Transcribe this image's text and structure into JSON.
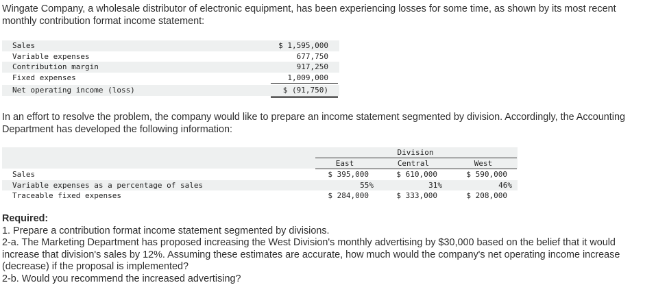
{
  "intro": "Wingate Company, a wholesale distributor of electronic equipment, has been experiencing losses for some time, as shown by its most recent monthly contribution format income statement:",
  "income_statement": {
    "rows": [
      {
        "label": "Sales",
        "value": "$ 1,595,000"
      },
      {
        "label": "Variable expenses",
        "value": "677,750"
      },
      {
        "label": "Contribution margin",
        "value": "917,250"
      },
      {
        "label": "Fixed expenses",
        "value": "1,009,000"
      },
      {
        "label": "Net operating income (loss)",
        "value": "$ (91,750)"
      }
    ]
  },
  "effort": "In an effort to resolve the problem, the company would like to prepare an income statement segmented by division. Accordingly, the Accounting Department has developed the following information:",
  "division_table": {
    "group_header": "Division",
    "columns": [
      "East",
      "Central",
      "West"
    ],
    "rows": [
      {
        "label": "Sales",
        "values": [
          "$ 395,000",
          "$ 610,000",
          "$ 590,000"
        ]
      },
      {
        "label": "Variable expenses as a percentage of sales",
        "values": [
          "55%",
          "31%",
          "46%"
        ]
      },
      {
        "label": "Traceable fixed expenses",
        "values": [
          "$ 284,000",
          "$ 333,000",
          "$ 208,000"
        ]
      }
    ]
  },
  "required": {
    "heading": "Required:",
    "items": [
      "1. Prepare a contribution format income statement segmented by divisions.",
      "2-a. The Marketing Department has proposed increasing the West Division's monthly advertising by $30,000 based on the belief that it would increase that division's sales by 12%. Assuming these estimates are accurate, how much would the company's net operating income increase (decrease) if the proposal is implemented?",
      "2-b. Would you recommend the increased advertising?"
    ]
  }
}
